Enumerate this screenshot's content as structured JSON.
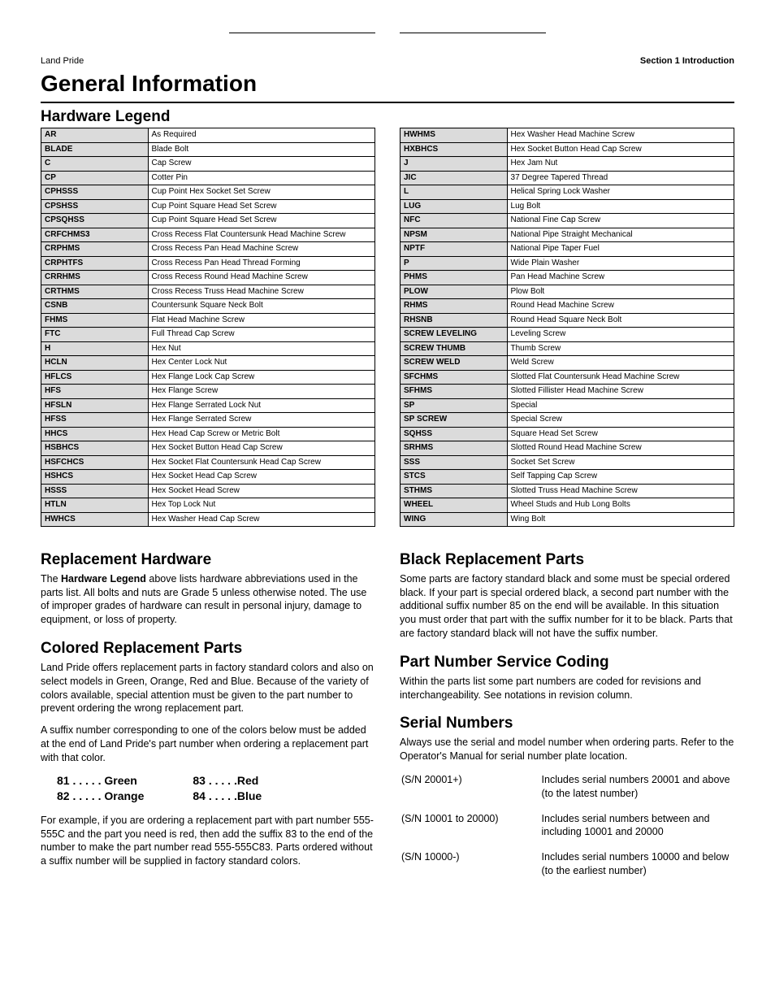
{
  "header": {
    "left": "Land Pride",
    "right": "Section 1   Introduction"
  },
  "title": "General Information",
  "legend_heading": "Hardware Legend",
  "legend_left": [
    [
      "AR",
      "As Required"
    ],
    [
      "BLADE",
      "Blade Bolt"
    ],
    [
      "C",
      "Cap Screw"
    ],
    [
      "CP",
      "Cotter Pin"
    ],
    [
      "CPHSSS",
      "Cup Point Hex Socket Set Screw"
    ],
    [
      "CPSHSS",
      "Cup Point Square Head Set Screw"
    ],
    [
      "CPSQHSS",
      "Cup Point Square Head Set Screw"
    ],
    [
      "CRFCHMS3",
      "Cross Recess Flat Countersunk Head Machine Screw"
    ],
    [
      "CRPHMS",
      "Cross Recess Pan Head Machine Screw"
    ],
    [
      "CRPHTFS",
      "Cross Recess Pan Head Thread Forming"
    ],
    [
      "CRRHMS",
      "Cross Recess Round Head Machine Screw"
    ],
    [
      "CRTHMS",
      "Cross Recess Truss Head Machine Screw"
    ],
    [
      "CSNB",
      "Countersunk Square Neck Bolt"
    ],
    [
      "FHMS",
      "Flat Head Machine Screw"
    ],
    [
      "FTC",
      "Full Thread Cap Screw"
    ],
    [
      "H",
      "Hex Nut"
    ],
    [
      "HCLN",
      "Hex Center Lock Nut"
    ],
    [
      "HFLCS",
      "Hex Flange Lock Cap Screw"
    ],
    [
      "HFS",
      "Hex Flange Screw"
    ],
    [
      "HFSLN",
      "Hex Flange Serrated Lock Nut"
    ],
    [
      "HFSS",
      "Hex Flange Serrated Screw"
    ],
    [
      "HHCS",
      "Hex Head Cap Screw or Metric Bolt"
    ],
    [
      "HSBHCS",
      "Hex Socket Button Head Cap Screw"
    ],
    [
      "HSFCHCS",
      "Hex Socket Flat Countersunk Head Cap Screw"
    ],
    [
      "HSHCS",
      "Hex Socket Head Cap Screw"
    ],
    [
      "HSSS",
      "Hex Socket Head Screw"
    ],
    [
      "HTLN",
      "Hex Top Lock Nut"
    ],
    [
      "HWHCS",
      "Hex Washer Head Cap Screw"
    ]
  ],
  "legend_right": [
    [
      "HWHMS",
      "Hex Washer Head Machine Screw"
    ],
    [
      "HXBHCS",
      "Hex Socket Button Head Cap Screw"
    ],
    [
      "J",
      "Hex Jam Nut"
    ],
    [
      "JIC",
      "37 Degree Tapered Thread"
    ],
    [
      "L",
      "Helical Spring Lock Washer"
    ],
    [
      "LUG",
      "Lug Bolt"
    ],
    [
      "NFC",
      "National Fine Cap Screw"
    ],
    [
      "NPSM",
      "National Pipe Straight Mechanical"
    ],
    [
      "NPTF",
      "National Pipe Taper Fuel"
    ],
    [
      "P",
      "Wide Plain Washer"
    ],
    [
      "PHMS",
      "Pan Head Machine Screw"
    ],
    [
      "PLOW",
      "Plow Bolt"
    ],
    [
      "RHMS",
      "Round Head Machine Screw"
    ],
    [
      "RHSNB",
      "Round Head Square Neck Bolt"
    ],
    [
      "SCREW LEVELING",
      "Leveling Screw"
    ],
    [
      "SCREW THUMB",
      "Thumb Screw"
    ],
    [
      "SCREW WELD",
      "Weld Screw"
    ],
    [
      "SFCHMS",
      "Slotted Flat Countersunk Head Machine Screw"
    ],
    [
      "SFHMS",
      "Slotted Fillister Head Machine Screw"
    ],
    [
      "SP",
      "Special"
    ],
    [
      "SP SCREW",
      "Special Screw"
    ],
    [
      "SQHSS",
      "Square Head Set Screw"
    ],
    [
      "SRHMS",
      "Slotted Round Head Machine Screw"
    ],
    [
      "SSS",
      "Socket Set Screw"
    ],
    [
      "STCS",
      "Self Tapping Cap Screw"
    ],
    [
      "STHMS",
      "Slotted Truss Head Machine Screw"
    ],
    [
      "WHEEL",
      "Wheel Studs and Hub Long Bolts"
    ],
    [
      "WING",
      "Wing Bolt"
    ]
  ],
  "replacement_heading": "Replacement Hardware",
  "replacement_bold": "Hardware Legend",
  "replacement_body_pre": "The ",
  "replacement_body_post": " above lists hardware abbreviations used in the parts list. All bolts and nuts are Grade 5 unless otherwise noted. The use of improper grades of hardware can result in personal injury, damage to equipment, or loss of property.",
  "colored_heading": "Colored Replacement Parts",
  "colored_p1": "Land Pride offers replacement parts in factory standard colors and also on select models in Green, Orange, Red and Blue. Because of the variety of colors available, special attention must be given to the part number to prevent ordering the wrong replacement part.",
  "colored_p2": "A suffix number corresponding to one of the colors below must be added at the end of Land Pride's part number when ordering a replacement part with that color.",
  "color_suffixes": {
    "c81": "81 . . . . .  Green",
    "c82": "82 . . . . .  Orange",
    "c83": "83  . . . . .Red",
    "c84": "84  . . . . .Blue"
  },
  "colored_p3": "For example, if you are ordering a replacement part with part number 555-555C and the part you need is red, then add the suffix 83 to the end of the number to make the part number read 555-555C83. Parts ordered without a suffix number will be supplied in factory standard colors.",
  "black_heading": "Black Replacement Parts",
  "black_p": "Some parts are factory standard black and some must be special ordered black. If your part is special ordered black, a second part number with the additional suffix number 85 on the end will be available. In this situation you must order that part with the suffix number for it to be black. Parts that are factory standard black will not have the suffix number.",
  "coding_heading": "Part Number Service Coding",
  "coding_p": "Within the parts list some part numbers are coded for revisions and interchangeability. See notations in revision column.",
  "serial_heading": "Serial Numbers",
  "serial_p": "Always use the serial and model number when ordering parts. Refer to the Operator's Manual for serial number plate location.",
  "serial_rows": [
    {
      "code": "(S/N 20001+)",
      "desc": "Includes serial numbers 20001 and above (to the latest number)"
    },
    {
      "code": "(S/N 10001 to 20000)",
      "desc": "Includes serial numbers between and including 10001 and 20000"
    },
    {
      "code": "(S/N 10000-)",
      "desc": "Includes serial numbers 10000 and below (to the earliest number)"
    }
  ]
}
